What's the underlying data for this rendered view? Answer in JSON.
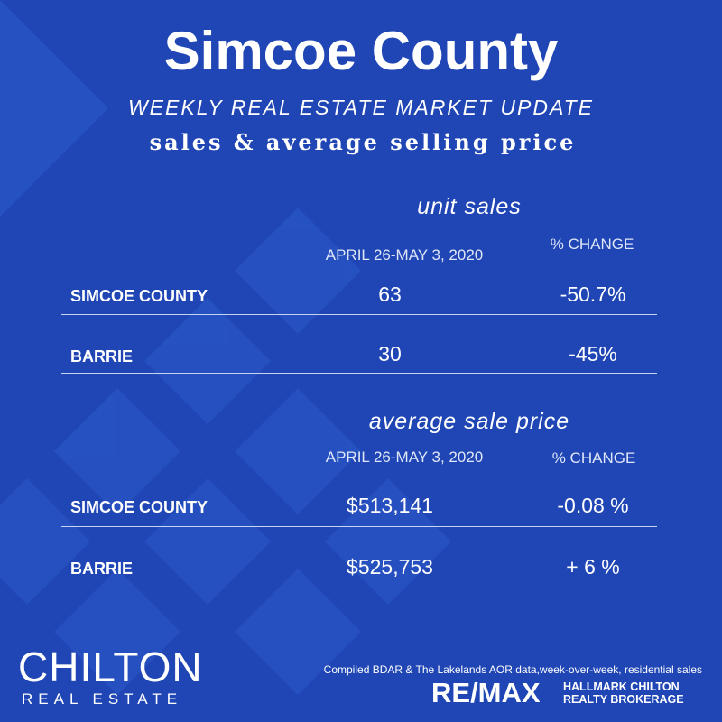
{
  "header": {
    "title": "Simcoe County",
    "subtitle": "WEEKLY REAL ESTATE MARKET UPDATE",
    "tagline": "sales & average selling price"
  },
  "sections": [
    {
      "heading": "unit sales",
      "period": "APRIL 26-MAY 3, 2020",
      "change_label": "% CHANGE",
      "rows": [
        [
          "SIMCOE COUNTY",
          "63",
          "-50.7%"
        ],
        [
          "BARRIE",
          "30",
          "-45%"
        ]
      ]
    },
    {
      "heading": "average sale price",
      "period": "APRIL 26-MAY 3, 2020",
      "change_label": "% CHANGE",
      "rows": [
        [
          "SIMCOE COUNTY",
          "$513,141",
          "-0.08 %"
        ],
        [
          "BARRIE",
          "$525,753",
          "+ 6 %"
        ]
      ]
    }
  ],
  "footer": {
    "brand": "CHILTON",
    "brand_sub": "REAL ESTATE",
    "note": "Compiled BDAR & The Lakelands AOR data,week-over-week, residential sales",
    "remax": "RE/MAX",
    "brokerage_line1": "HALLMARK CHILTON",
    "brokerage_line2": "REALTY BROKERAGE"
  }
}
